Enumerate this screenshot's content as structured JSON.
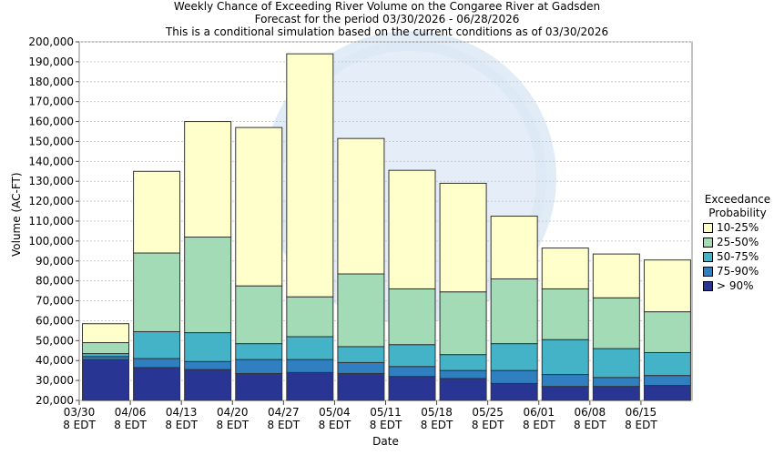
{
  "chart_data": {
    "type": "bar",
    "stacked": true,
    "title": "Weekly Chance of Exceeding River Volume on the Congaree River at Gadsden",
    "subtitle_1": "Forecast for the period 03/30/2026 - 06/28/2026",
    "subtitle_2": "This is a conditional simulation based on the current conditions as of 03/30/2026",
    "xlabel": "Date",
    "ylabel": "Volume (AC-FT)",
    "ylim": [
      20000,
      200000
    ],
    "ytick_step": 10000,
    "yticks": [
      "20,000",
      "30,000",
      "40,000",
      "50,000",
      "60,000",
      "70,000",
      "80,000",
      "90,000",
      "100,000",
      "110,000",
      "120,000",
      "130,000",
      "140,000",
      "150,000",
      "160,000",
      "170,000",
      "180,000",
      "190,000",
      "200,000"
    ],
    "xtick_labels": [
      {
        "date": "03/30",
        "tz": "8 EDT"
      },
      {
        "date": "04/06",
        "tz": "8 EDT"
      },
      {
        "date": "04/13",
        "tz": "8 EDT"
      },
      {
        "date": "04/20",
        "tz": "8 EDT"
      },
      {
        "date": "04/27",
        "tz": "8 EDT"
      },
      {
        "date": "05/04",
        "tz": "8 EDT"
      },
      {
        "date": "05/11",
        "tz": "8 EDT"
      },
      {
        "date": "05/18",
        "tz": "8 EDT"
      },
      {
        "date": "05/25",
        "tz": "8 EDT"
      },
      {
        "date": "06/01",
        "tz": "8 EDT"
      },
      {
        "date": "06/08",
        "tz": "8 EDT"
      },
      {
        "date": "06/15",
        "tz": "8 EDT"
      }
    ],
    "grid": true,
    "legend_position": "right",
    "legend_title": [
      "Exceedance",
      "Probability"
    ],
    "series": [
      {
        "name": "> 90%",
        "color": "#283593",
        "tops": [
          40500,
          36500,
          35500,
          33500,
          34000,
          33500,
          32000,
          31000,
          28500,
          27000,
          27000,
          27500
        ]
      },
      {
        "name": "75-90%",
        "color": "#2f7fc1",
        "tops": [
          42000,
          41000,
          39500,
          40500,
          40500,
          39000,
          37000,
          35000,
          35000,
          33000,
          31500,
          32500
        ]
      },
      {
        "name": "50-75%",
        "color": "#44b3c7",
        "tops": [
          43500,
          54500,
          54000,
          48500,
          52000,
          47000,
          48000,
          43000,
          48500,
          50500,
          46000,
          44000
        ]
      },
      {
        "name": "25-50%",
        "color": "#a2dbb6",
        "tops": [
          49000,
          94000,
          102000,
          77500,
          72000,
          83500,
          76000,
          74500,
          81000,
          76000,
          71500,
          64500
        ]
      },
      {
        "name": "10-25%",
        "color": "#ffffcc",
        "tops": [
          58500,
          135000,
          160000,
          157000,
          194000,
          151500,
          135500,
          129000,
          112500,
          96500,
          93500,
          90500
        ]
      }
    ],
    "background_watermark": "NATIONAL OCEANIC AND ATMOSPHERIC ADMINISTRATION"
  }
}
